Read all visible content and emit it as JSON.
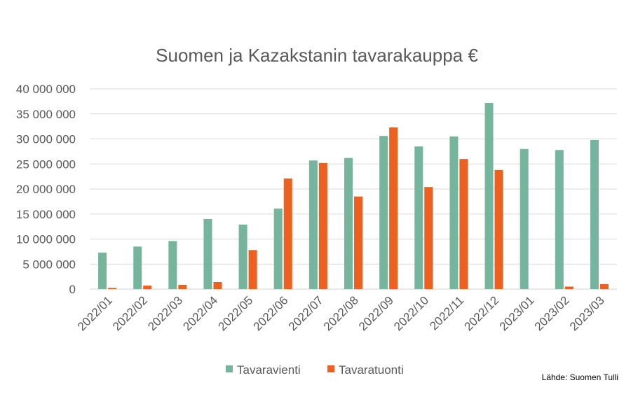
{
  "chart_data": {
    "type": "bar",
    "title": "Suomen ja Kazakstanin tavarakauppa €",
    "xlabel": "",
    "ylabel": "",
    "ylim": [
      0,
      40000000
    ],
    "y_ticks": [
      "0",
      "5 000 000",
      "10 000 000",
      "15 000 000",
      "20 000 000",
      "25 000 000",
      "30 000 000",
      "35 000 000",
      "40 000 000"
    ],
    "y_tick_values": [
      0,
      5000000,
      10000000,
      15000000,
      20000000,
      25000000,
      30000000,
      35000000,
      40000000
    ],
    "grid": true,
    "legend_position": "bottom",
    "categories": [
      "2022/01",
      "2022/02",
      "2022/03",
      "2022/04",
      "2022/05",
      "2022/06",
      "2022/07",
      "2022/08",
      "2022/09",
      "2022/10",
      "2022/11",
      "2022/12",
      "2023/01",
      "2023/02",
      "2023/03"
    ],
    "series": [
      {
        "name": "Tavaravienti",
        "color": "#76b59d",
        "values": [
          7300000,
          8500000,
          9600000,
          14000000,
          12900000,
          16100000,
          25700000,
          26200000,
          30600000,
          28500000,
          30500000,
          37200000,
          28000000,
          27800000,
          29800000
        ]
      },
      {
        "name": "Tavaratuonti",
        "color": "#ed6120",
        "values": [
          250000,
          700000,
          850000,
          1400000,
          7800000,
          22100000,
          25200000,
          18500000,
          32300000,
          20400000,
          26000000,
          23800000,
          0,
          500000,
          1000000
        ]
      }
    ],
    "source": "Lähde: Suomen Tulli"
  }
}
